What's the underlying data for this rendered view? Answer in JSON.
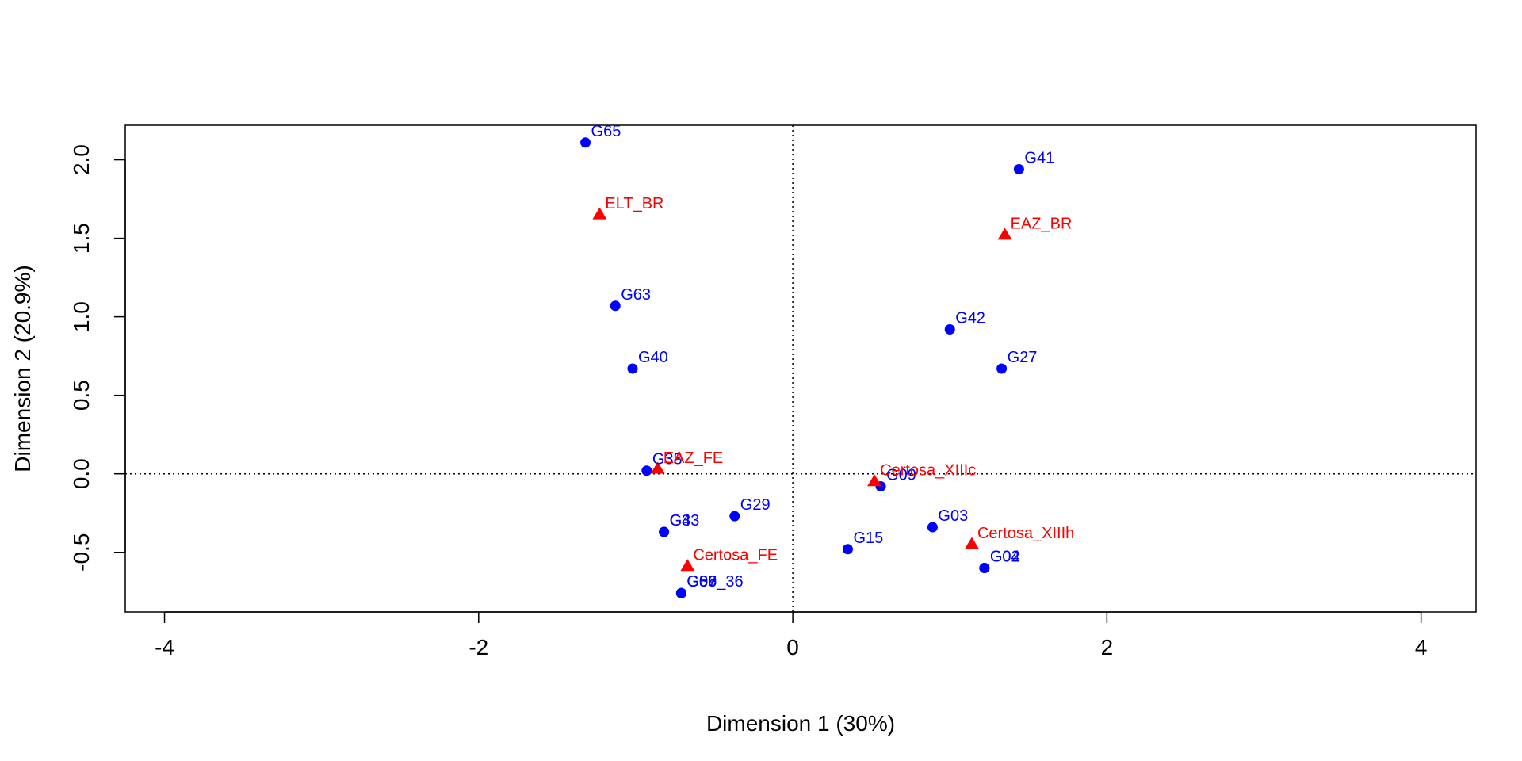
{
  "chart_data": {
    "type": "scatter",
    "xlabel": "Dimension 1 (30%)",
    "ylabel": "Dimension 2 (20.9%)",
    "xlim": [
      -4.25,
      4.35
    ],
    "ylim": [
      -0.88,
      2.22
    ],
    "xticks": [
      -4,
      -2,
      0,
      2,
      4
    ],
    "yticks": [
      -0.5,
      0.0,
      0.5,
      1.0,
      1.5,
      2.0
    ],
    "xtick_labels": [
      "-4",
      "-2",
      "0",
      "2",
      "4"
    ],
    "ytick_labels": [
      "-0.5",
      "0.0",
      "0.5",
      "1.0",
      "1.5",
      "2.0"
    ],
    "reference_lines": {
      "x": 0,
      "y": 0,
      "style": "dotted"
    },
    "grid": false,
    "series": [
      {
        "marker": "circle",
        "color": "#0000FF",
        "points": [
          {
            "label": "G65",
            "x": -1.32,
            "y": 2.11
          },
          {
            "label": "G41",
            "x": 1.44,
            "y": 1.94
          },
          {
            "label": "G63",
            "x": -1.13,
            "y": 1.07
          },
          {
            "label": "G42",
            "x": 1.0,
            "y": 0.92
          },
          {
            "label": "G40",
            "x": -1.02,
            "y": 0.67
          },
          {
            "label": "G27",
            "x": 1.33,
            "y": 0.67
          },
          {
            "label": "G38",
            "x": -0.93,
            "y": 0.02
          },
          {
            "label": "G09",
            "x": 0.56,
            "y": -0.08
          },
          {
            "label": "G29",
            "x": -0.37,
            "y": -0.27
          },
          {
            "label": "G03",
            "x": 0.89,
            "y": -0.34
          },
          {
            "label": "G33",
            "x": -0.82,
            "y": -0.37
          },
          {
            "label": "G4",
            "x": -0.82,
            "y": -0.37
          },
          {
            "label": "G15",
            "x": 0.35,
            "y": -0.48
          },
          {
            "label": "G04",
            "x": 1.22,
            "y": -0.6
          },
          {
            "label": "G02",
            "x": 1.22,
            "y": -0.6
          },
          {
            "label": "G05",
            "x": -0.71,
            "y": -0.76
          },
          {
            "label": "G37",
            "x": -0.71,
            "y": -0.76
          },
          {
            "label": "G06",
            "x": -0.71,
            "y": -0.76
          },
          {
            "label": "G59_36",
            "x": -0.71,
            "y": -0.76
          }
        ]
      },
      {
        "marker": "triangle",
        "color": "#FF0000",
        "points": [
          {
            "label": "ELT_BR",
            "x": -1.23,
            "y": 1.65
          },
          {
            "label": "EAZ_BR",
            "x": 1.35,
            "y": 1.52
          },
          {
            "label": "EAZ_FE",
            "x": -0.86,
            "y": 0.03
          },
          {
            "label": "Certosa_XIIIc",
            "x": 0.52,
            "y": -0.05
          },
          {
            "label": "Certosa_XIIIh",
            "x": 1.14,
            "y": -0.45
          },
          {
            "label": "Certosa_FE",
            "x": -0.67,
            "y": -0.59
          }
        ]
      }
    ]
  }
}
